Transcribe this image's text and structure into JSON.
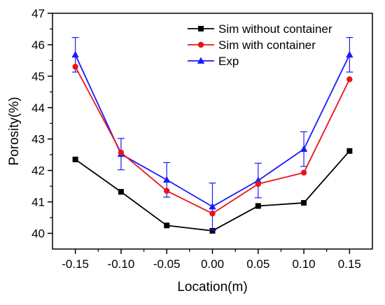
{
  "chart_data": {
    "type": "line",
    "xlabel": "Location(m)",
    "ylabel": "Porosity(%)",
    "xlim": [
      -0.175,
      0.175
    ],
    "ylim": [
      39.5,
      47
    ],
    "x_ticks": [
      "-0.15",
      "-0.10",
      "-0.05",
      "0.00",
      "0.05",
      "0.10",
      "0.15"
    ],
    "y_ticks": [
      "40",
      "41",
      "42",
      "43",
      "44",
      "45",
      "46",
      "47"
    ],
    "x": [
      -0.15,
      -0.1,
      -0.05,
      0.0,
      0.05,
      0.1,
      0.15
    ],
    "legend_position": "top-right",
    "grid": false,
    "series": [
      {
        "name": "Sim without container",
        "color": "#000000",
        "marker": "square",
        "values": [
          42.35,
          41.32,
          40.25,
          40.08,
          40.87,
          40.97,
          42.62
        ]
      },
      {
        "name": "Sim with container",
        "color": "#e8141b",
        "marker": "circle",
        "values": [
          45.3,
          42.57,
          41.35,
          40.63,
          41.57,
          41.93,
          44.9
        ]
      },
      {
        "name": "Exp",
        "color": "#1a1aff",
        "marker": "triangle",
        "values": [
          45.68,
          42.52,
          41.7,
          40.85,
          41.68,
          42.68,
          45.68
        ],
        "error": [
          0.55,
          0.5,
          0.55,
          0.75,
          0.55,
          0.55,
          0.55
        ]
      }
    ]
  }
}
